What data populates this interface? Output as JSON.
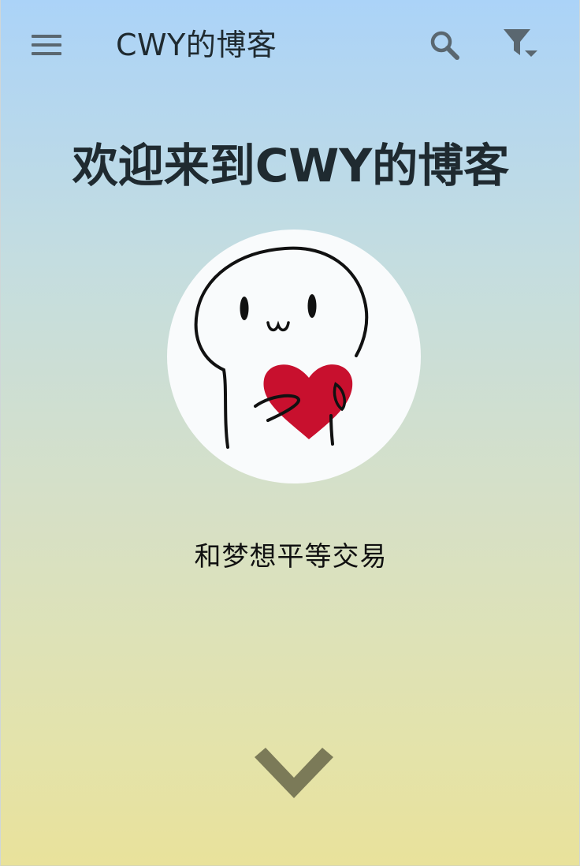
{
  "header": {
    "site_title": "CWY的博客",
    "icons": {
      "menu": "menu-icon",
      "search": "search-icon",
      "filter": "filter-icon"
    }
  },
  "hero": {
    "title": "欢迎来到CWY的博客",
    "motto": "和梦想平等交易",
    "avatar_icon": "avatar-heart-character",
    "scroll_icon": "chevron-down-icon"
  },
  "colors": {
    "gradient_top": "#abd3f8",
    "gradient_bottom": "#e9e29b",
    "text_dark": "#1f2a30",
    "icon_gray": "#5a6770",
    "heart_red": "#c8102e",
    "chevron": "#7b7a58"
  }
}
